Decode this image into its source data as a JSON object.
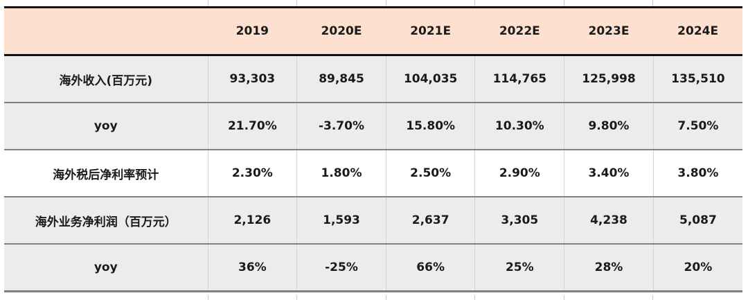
{
  "table": {
    "header": [
      "",
      "2019",
      "2020E",
      "2021E",
      "2022E",
      "2023E",
      "2024E"
    ],
    "rows": [
      {
        "label": "海外收入(百万元)",
        "values": [
          "93,303",
          "89,845",
          "104,035",
          "114,765",
          "125,998",
          "135,510"
        ]
      },
      {
        "label": "yoy",
        "values": [
          "21.70%",
          "-3.70%",
          "15.80%",
          "10.30%",
          "9.80%",
          "7.50%"
        ]
      },
      {
        "label": "海外税后净利率预计",
        "values": [
          "2.30%",
          "1.80%",
          "2.50%",
          "2.90%",
          "3.40%",
          "3.80%"
        ]
      },
      {
        "label": "海外业务净利润（百万元）",
        "values": [
          "2,126",
          "1,593",
          "2,637",
          "3,305",
          "4,238",
          "5,087"
        ]
      },
      {
        "label": "yoy",
        "values": [
          "36%",
          "-25%",
          "66%",
          "25%",
          "28%",
          "20%"
        ]
      }
    ]
  },
  "colors": {
    "header_bg": "#fde0d0",
    "row_gray": "#ececec",
    "row_white": "#ffffff",
    "rule_dark": "#111111",
    "rule_gray": "#808080"
  }
}
